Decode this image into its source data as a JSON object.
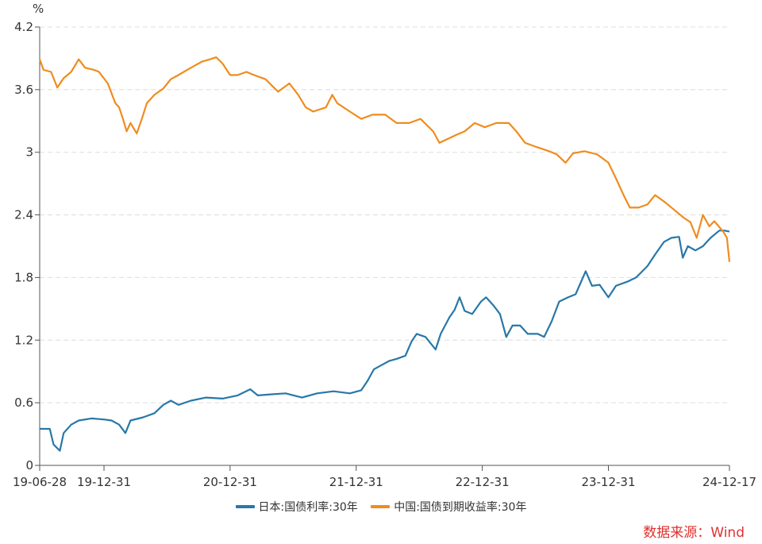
{
  "chart_data": {
    "type": "line",
    "title": "",
    "ylabel": "%",
    "xlabel": "",
    "ylim": [
      0,
      4.2
    ],
    "xlim": [
      2019.49,
      2024.96
    ],
    "yticks": [
      {
        "value": 0,
        "label": "0"
      },
      {
        "value": 0.6,
        "label": "0.6"
      },
      {
        "value": 1.2,
        "label": "1.2"
      },
      {
        "value": 1.8,
        "label": "1.8"
      },
      {
        "value": 2.4,
        "label": "2.4"
      },
      {
        "value": 3.0,
        "label": "3"
      },
      {
        "value": 3.6,
        "label": "3.6"
      },
      {
        "value": 4.2,
        "label": "4.2"
      }
    ],
    "xticks": [
      {
        "value": 2019.49,
        "label": "19-06-28"
      },
      {
        "value": 2020.0,
        "label": "19-12-31"
      },
      {
        "value": 2021.0,
        "label": "20-12-31"
      },
      {
        "value": 2022.0,
        "label": "21-12-31"
      },
      {
        "value": 2023.0,
        "label": "22-12-31"
      },
      {
        "value": 2024.0,
        "label": "23-12-31"
      },
      {
        "value": 2024.96,
        "label": "24-12-17"
      }
    ],
    "grid": "horizontal-dashed",
    "legend_position": "bottom",
    "series": [
      {
        "name": "日本:国债利率:30年",
        "color": "#2878a8",
        "points": [
          [
            2019.49,
            0.35
          ],
          [
            2019.57,
            0.35
          ],
          [
            2019.6,
            0.2
          ],
          [
            2019.65,
            0.14
          ],
          [
            2019.68,
            0.31
          ],
          [
            2019.74,
            0.39
          ],
          [
            2019.8,
            0.43
          ],
          [
            2019.9,
            0.45
          ],
          [
            2020.0,
            0.44
          ],
          [
            2020.06,
            0.43
          ],
          [
            2020.12,
            0.39
          ],
          [
            2020.17,
            0.31
          ],
          [
            2020.21,
            0.43
          ],
          [
            2020.31,
            0.46
          ],
          [
            2020.4,
            0.5
          ],
          [
            2020.47,
            0.58
          ],
          [
            2020.53,
            0.62
          ],
          [
            2020.59,
            0.58
          ],
          [
            2020.69,
            0.62
          ],
          [
            2020.81,
            0.65
          ],
          [
            2020.94,
            0.64
          ],
          [
            2021.06,
            0.67
          ],
          [
            2021.16,
            0.73
          ],
          [
            2021.22,
            0.67
          ],
          [
            2021.32,
            0.68
          ],
          [
            2021.44,
            0.69
          ],
          [
            2021.57,
            0.65
          ],
          [
            2021.69,
            0.69
          ],
          [
            2021.82,
            0.71
          ],
          [
            2021.95,
            0.69
          ],
          [
            2022.04,
            0.72
          ],
          [
            2022.09,
            0.81
          ],
          [
            2022.14,
            0.92
          ],
          [
            2022.2,
            0.96
          ],
          [
            2022.26,
            1.0
          ],
          [
            2022.32,
            1.02
          ],
          [
            2022.39,
            1.05
          ],
          [
            2022.44,
            1.19
          ],
          [
            2022.48,
            1.26
          ],
          [
            2022.55,
            1.23
          ],
          [
            2022.63,
            1.11
          ],
          [
            2022.67,
            1.26
          ],
          [
            2022.74,
            1.42
          ],
          [
            2022.78,
            1.49
          ],
          [
            2022.82,
            1.61
          ],
          [
            2022.86,
            1.48
          ],
          [
            2022.92,
            1.45
          ],
          [
            2022.99,
            1.57
          ],
          [
            2023.03,
            1.61
          ],
          [
            2023.09,
            1.53
          ],
          [
            2023.14,
            1.45
          ],
          [
            2023.19,
            1.23
          ],
          [
            2023.24,
            1.34
          ],
          [
            2023.3,
            1.34
          ],
          [
            2023.36,
            1.26
          ],
          [
            2023.44,
            1.26
          ],
          [
            2023.49,
            1.23
          ],
          [
            2023.55,
            1.38
          ],
          [
            2023.61,
            1.57
          ],
          [
            2023.68,
            1.61
          ],
          [
            2023.74,
            1.64
          ],
          [
            2023.82,
            1.86
          ],
          [
            2023.87,
            1.72
          ],
          [
            2023.93,
            1.73
          ],
          [
            2024.0,
            1.61
          ],
          [
            2024.06,
            1.72
          ],
          [
            2024.15,
            1.76
          ],
          [
            2024.22,
            1.8
          ],
          [
            2024.31,
            1.91
          ],
          [
            2024.37,
            2.02
          ],
          [
            2024.44,
            2.14
          ],
          [
            2024.5,
            2.18
          ],
          [
            2024.56,
            2.19
          ],
          [
            2024.59,
            1.99
          ],
          [
            2024.63,
            2.1
          ],
          [
            2024.69,
            2.06
          ],
          [
            2024.75,
            2.1
          ],
          [
            2024.81,
            2.18
          ],
          [
            2024.88,
            2.25
          ],
          [
            2024.92,
            2.25
          ],
          [
            2024.96,
            2.24
          ]
        ]
      },
      {
        "name": "中国:国债到期收益率:30年",
        "color": "#f08c1e",
        "points": [
          [
            2019.49,
            3.89
          ],
          [
            2019.52,
            3.79
          ],
          [
            2019.58,
            3.77
          ],
          [
            2019.63,
            3.62
          ],
          [
            2019.68,
            3.71
          ],
          [
            2019.74,
            3.77
          ],
          [
            2019.8,
            3.89
          ],
          [
            2019.85,
            3.81
          ],
          [
            2019.92,
            3.79
          ],
          [
            2019.96,
            3.77
          ],
          [
            2020.03,
            3.66
          ],
          [
            2020.09,
            3.47
          ],
          [
            2020.12,
            3.43
          ],
          [
            2020.15,
            3.32
          ],
          [
            2020.18,
            3.2
          ],
          [
            2020.21,
            3.28
          ],
          [
            2020.26,
            3.18
          ],
          [
            2020.3,
            3.32
          ],
          [
            2020.34,
            3.47
          ],
          [
            2020.4,
            3.55
          ],
          [
            2020.47,
            3.61
          ],
          [
            2020.53,
            3.7
          ],
          [
            2020.59,
            3.74
          ],
          [
            2020.66,
            3.79
          ],
          [
            2020.72,
            3.83
          ],
          [
            2020.78,
            3.87
          ],
          [
            2020.84,
            3.89
          ],
          [
            2020.89,
            3.91
          ],
          [
            2020.94,
            3.85
          ],
          [
            2021.0,
            3.74
          ],
          [
            2021.06,
            3.74
          ],
          [
            2021.13,
            3.77
          ],
          [
            2021.19,
            3.74
          ],
          [
            2021.28,
            3.7
          ],
          [
            2021.38,
            3.58
          ],
          [
            2021.47,
            3.66
          ],
          [
            2021.54,
            3.55
          ],
          [
            2021.6,
            3.43
          ],
          [
            2021.66,
            3.39
          ],
          [
            2021.76,
            3.43
          ],
          [
            2021.81,
            3.55
          ],
          [
            2021.85,
            3.47
          ],
          [
            2021.95,
            3.39
          ],
          [
            2022.04,
            3.32
          ],
          [
            2022.13,
            3.36
          ],
          [
            2022.23,
            3.36
          ],
          [
            2022.32,
            3.28
          ],
          [
            2022.42,
            3.28
          ],
          [
            2022.51,
            3.32
          ],
          [
            2022.61,
            3.2
          ],
          [
            2022.66,
            3.09
          ],
          [
            2022.73,
            3.13
          ],
          [
            2022.8,
            3.17
          ],
          [
            2022.86,
            3.2
          ],
          [
            2022.94,
            3.28
          ],
          [
            2023.02,
            3.24
          ],
          [
            2023.11,
            3.28
          ],
          [
            2023.21,
            3.28
          ],
          [
            2023.27,
            3.2
          ],
          [
            2023.34,
            3.09
          ],
          [
            2023.43,
            3.05
          ],
          [
            2023.53,
            3.01
          ],
          [
            2023.59,
            2.98
          ],
          [
            2023.66,
            2.9
          ],
          [
            2023.72,
            2.99
          ],
          [
            2023.81,
            3.01
          ],
          [
            2023.91,
            2.98
          ],
          [
            2024.0,
            2.9
          ],
          [
            2024.06,
            2.75
          ],
          [
            2024.12,
            2.59
          ],
          [
            2024.17,
            2.47
          ],
          [
            2024.24,
            2.47
          ],
          [
            2024.31,
            2.5
          ],
          [
            2024.37,
            2.59
          ],
          [
            2024.45,
            2.52
          ],
          [
            2024.53,
            2.44
          ],
          [
            2024.6,
            2.37
          ],
          [
            2024.65,
            2.33
          ],
          [
            2024.7,
            2.18
          ],
          [
            2024.75,
            2.4
          ],
          [
            2024.8,
            2.29
          ],
          [
            2024.84,
            2.34
          ],
          [
            2024.91,
            2.24
          ],
          [
            2024.94,
            2.18
          ],
          [
            2024.96,
            1.95
          ]
        ]
      }
    ]
  },
  "source_note": "数据来源：Wind"
}
